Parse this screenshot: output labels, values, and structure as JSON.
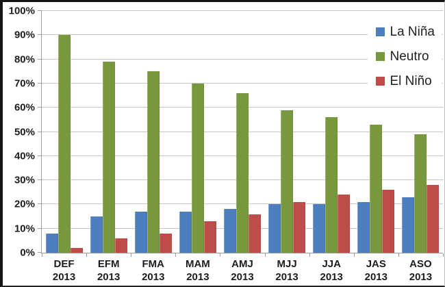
{
  "chart_data": {
    "type": "bar",
    "title": "",
    "categories": [
      "DEF",
      "EFM",
      "FMA",
      "MAM",
      "AMJ",
      "MJJ",
      "JJA",
      "JAS",
      "ASO"
    ],
    "category_year": "2013",
    "series": [
      {
        "key": "la-nina",
        "name": "La Niña",
        "color": "#4D7EBE",
        "values": [
          8,
          15,
          17,
          17,
          18,
          20,
          20,
          21,
          23
        ]
      },
      {
        "key": "neutro",
        "name": "Neutro",
        "color": "#78983D",
        "values": [
          90,
          79,
          75,
          70,
          66,
          59,
          56,
          53,
          49
        ]
      },
      {
        "key": "el-nino",
        "name": "El Niño",
        "color": "#BE4C49",
        "values": [
          2,
          6,
          8,
          13,
          16,
          21,
          24,
          26,
          28
        ]
      }
    ],
    "xlabel": "",
    "ylabel": "",
    "ylim": [
      0,
      100
    ],
    "ytick_step": 10,
    "ytick_labels": [
      "0%",
      "10%",
      "20%",
      "30%",
      "40%",
      "50%",
      "60%",
      "70%",
      "80%",
      "90%",
      "100%"
    ],
    "grid": true,
    "legend_position": "top-right"
  },
  "style": {
    "background": "#ffffff",
    "gridline_color": "#c7c7c7",
    "axis_color": "#9c9c9c",
    "text_color": "#1c1c1c"
  }
}
